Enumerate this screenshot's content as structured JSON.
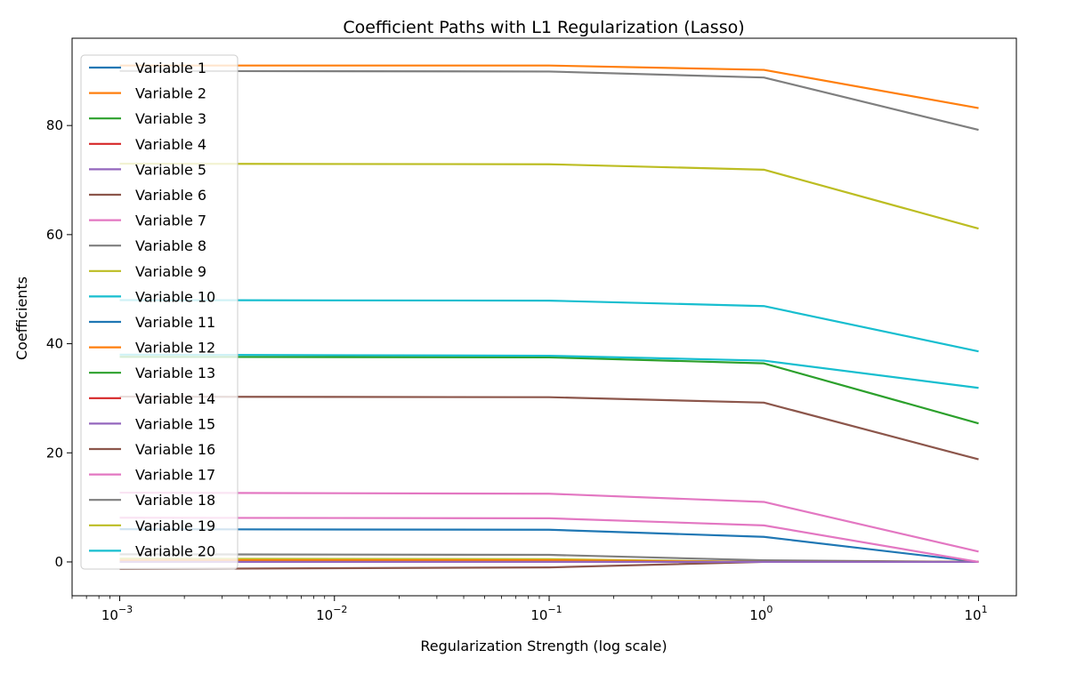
{
  "chart_data": {
    "type": "line",
    "title": "Coefficient Paths with L1 Regularization (Lasso)",
    "xlabel": "Regularization Strength (log scale)",
    "ylabel": "Coefficients",
    "xscale": "log",
    "xlim": [
      0.0006,
      15
    ],
    "ylim": [
      -6.2,
      96
    ],
    "grid": false,
    "legend_position": "upper-left",
    "x": [
      0.001,
      0.1,
      1,
      10
    ],
    "x_ticks": [
      {
        "value": 0.001,
        "base": "10",
        "exp": "−3"
      },
      {
        "value": 0.01,
        "base": "10",
        "exp": "−2"
      },
      {
        "value": 0.1,
        "base": "10",
        "exp": "−1"
      },
      {
        "value": 1,
        "base": "10",
        "exp": "0"
      },
      {
        "value": 10,
        "base": "10",
        "exp": "1"
      }
    ],
    "y_ticks": [
      0,
      20,
      40,
      60,
      80
    ],
    "series": [
      {
        "name": "Variable 1",
        "color": "#1f77b4",
        "values": [
          6.0,
          5.9,
          4.6,
          0.0
        ]
      },
      {
        "name": "Variable 2",
        "color": "#ff7f0e",
        "values": [
          91.0,
          91.0,
          90.2,
          83.2
        ]
      },
      {
        "name": "Variable 3",
        "color": "#2ca02c",
        "values": [
          37.6,
          37.5,
          36.4,
          25.4
        ]
      },
      {
        "name": "Variable 4",
        "color": "#d62728",
        "values": [
          0.0,
          0.0,
          0.0,
          0.0
        ]
      },
      {
        "name": "Variable 5",
        "color": "#9467bd",
        "values": [
          0.0,
          0.0,
          0.0,
          0.0
        ]
      },
      {
        "name": "Variable 6",
        "color": "#8c564b",
        "values": [
          -1.3,
          -1.0,
          0.0,
          0.0
        ]
      },
      {
        "name": "Variable 7",
        "color": "#e377c2",
        "values": [
          12.7,
          12.5,
          11.0,
          1.9
        ]
      },
      {
        "name": "Variable 8",
        "color": "#7f7f7f",
        "values": [
          1.4,
          1.3,
          0.3,
          0.0
        ]
      },
      {
        "name": "Variable 9",
        "color": "#bcbd22",
        "values": [
          0.6,
          0.5,
          0.0,
          0.0
        ]
      },
      {
        "name": "Variable 10",
        "color": "#17becf",
        "values": [
          38.0,
          37.8,
          36.9,
          31.9
        ]
      },
      {
        "name": "Variable 11",
        "color": "#1f77b4",
        "values": [
          0.0,
          0.0,
          0.0,
          0.0
        ]
      },
      {
        "name": "Variable 12",
        "color": "#ff7f0e",
        "values": [
          0.3,
          0.3,
          0.0,
          0.0
        ]
      },
      {
        "name": "Variable 13",
        "color": "#2ca02c",
        "values": [
          0.0,
          0.0,
          0.0,
          0.0
        ]
      },
      {
        "name": "Variable 14",
        "color": "#d62728",
        "values": [
          0.0,
          0.0,
          0.0,
          0.0
        ]
      },
      {
        "name": "Variable 15",
        "color": "#9467bd",
        "values": [
          0.0,
          0.0,
          0.0,
          0.0
        ]
      },
      {
        "name": "Variable 16",
        "color": "#8c564b",
        "values": [
          30.3,
          30.2,
          29.2,
          18.8
        ]
      },
      {
        "name": "Variable 17",
        "color": "#e377c2",
        "values": [
          8.1,
          8.0,
          6.7,
          0.0
        ]
      },
      {
        "name": "Variable 18",
        "color": "#7f7f7f",
        "values": [
          90.0,
          89.9,
          88.8,
          79.2
        ]
      },
      {
        "name": "Variable 19",
        "color": "#bcbd22",
        "values": [
          73.0,
          72.9,
          71.9,
          61.1
        ]
      },
      {
        "name": "Variable 20",
        "color": "#17becf",
        "values": [
          48.0,
          47.9,
          46.9,
          38.6
        ]
      }
    ]
  }
}
